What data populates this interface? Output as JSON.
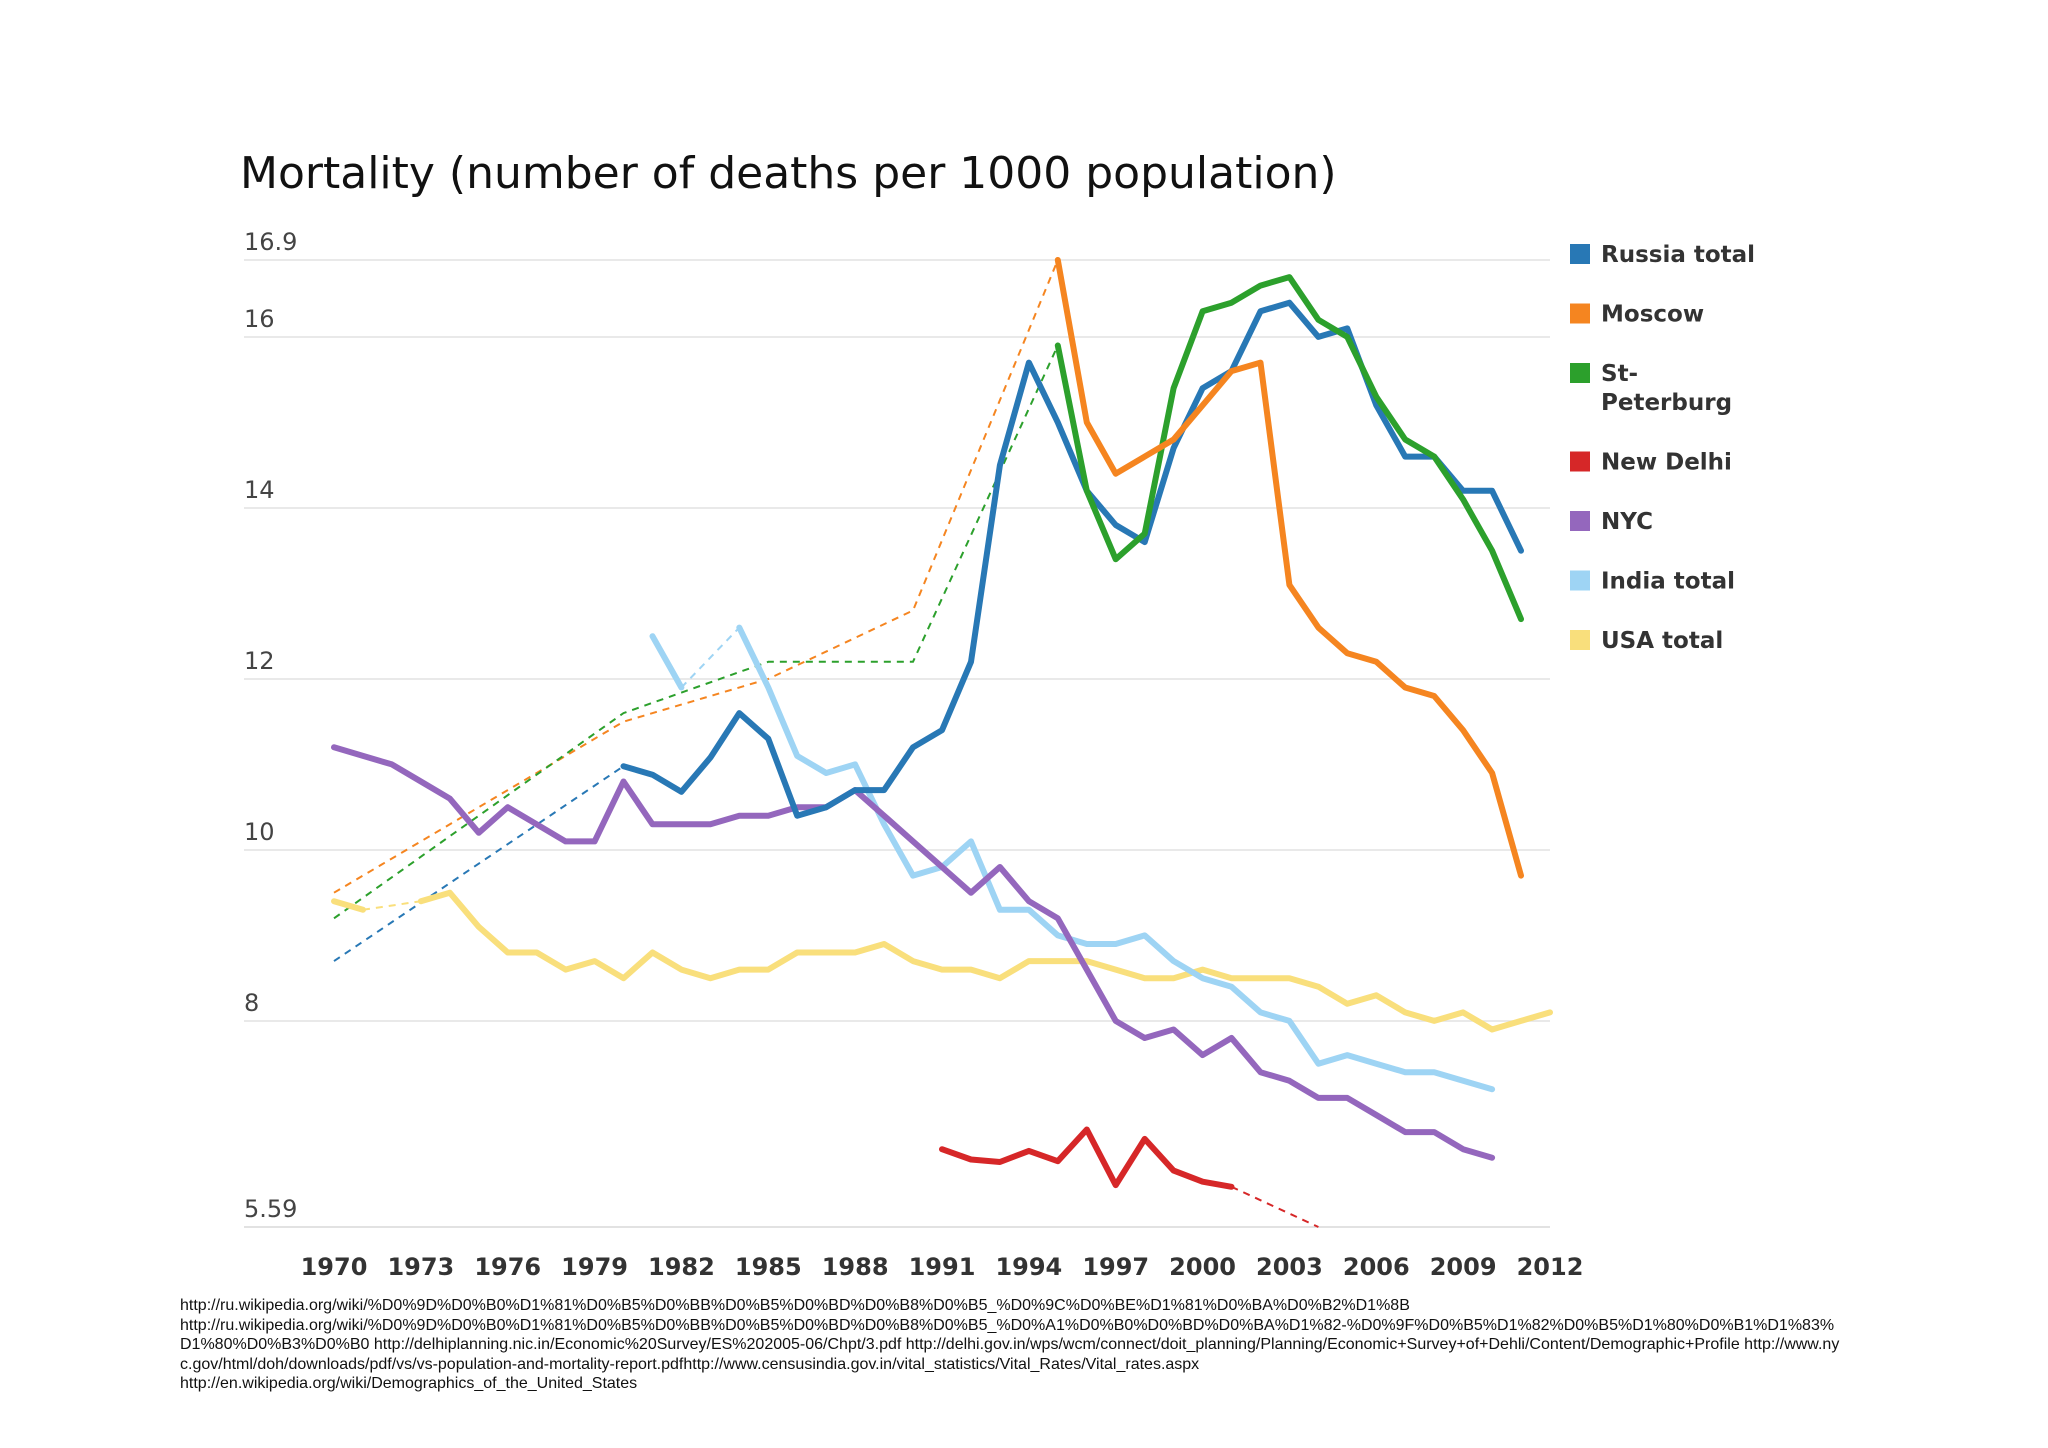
{
  "chart_data": {
    "type": "line",
    "title": "Mortality (number of deaths per 1000 population)",
    "xlabel": "",
    "ylabel": "",
    "xlim": [
      1970,
      2012
    ],
    "ylim": [
      5.59,
      16.9
    ],
    "x_ticks": [
      "1970",
      "1973",
      "1976",
      "1979",
      "1982",
      "1985",
      "1988",
      "1991",
      "1994",
      "1997",
      "2000",
      "2003",
      "2006",
      "2009",
      "2012"
    ],
    "y_ticks": [
      {
        "label": "16.9",
        "value": 16.9
      },
      {
        "label": "16",
        "value": 16
      },
      {
        "label": "14",
        "value": 14
      },
      {
        "label": "12",
        "value": 12
      },
      {
        "label": "10",
        "value": 10
      },
      {
        "label": "8",
        "value": 8
      },
      {
        "label": "5.59",
        "value": 5.59
      }
    ],
    "legend_position": "right",
    "series": [
      {
        "name": "Russia total",
        "color": "#2878b5",
        "solid": [
          [
            1980,
            10.98
          ],
          [
            1981,
            10.88
          ],
          [
            1982,
            10.68
          ],
          [
            1983,
            11.08
          ],
          [
            1984,
            11.6
          ],
          [
            1985,
            11.3
          ],
          [
            1986,
            10.4
          ],
          [
            1987,
            10.5
          ],
          [
            1988,
            10.7
          ],
          [
            1989,
            10.7
          ],
          [
            1990,
            11.2
          ],
          [
            1991,
            11.4
          ],
          [
            1992,
            12.2
          ],
          [
            1993,
            14.5
          ],
          [
            1994,
            15.7
          ],
          [
            1995,
            15.0
          ],
          [
            1996,
            14.2
          ],
          [
            1997,
            13.8
          ],
          [
            1998,
            13.6
          ],
          [
            1999,
            14.7
          ],
          [
            2000,
            15.4
          ],
          [
            2001,
            15.6
          ],
          [
            2002,
            16.3
          ],
          [
            2003,
            16.4
          ],
          [
            2004,
            16.0
          ],
          [
            2005,
            16.1
          ],
          [
            2006,
            15.2
          ],
          [
            2007,
            14.6
          ],
          [
            2008,
            14.6
          ],
          [
            2009,
            14.2
          ],
          [
            2010,
            14.2
          ],
          [
            2011,
            13.5
          ]
        ],
        "dashed": [
          [
            1970,
            8.7
          ],
          [
            1980,
            10.98
          ]
        ]
      },
      {
        "name": "Moscow",
        "color": "#f58520",
        "solid": [
          [
            1995,
            16.9
          ],
          [
            1996,
            15.0
          ],
          [
            1997,
            14.4
          ],
          [
            1998,
            14.6
          ],
          [
            1999,
            14.8
          ],
          [
            2000,
            15.2
          ],
          [
            2001,
            15.6
          ],
          [
            2002,
            15.7
          ],
          [
            2003,
            13.1
          ],
          [
            2004,
            12.6
          ],
          [
            2005,
            12.3
          ],
          [
            2006,
            12.2
          ],
          [
            2007,
            11.9
          ],
          [
            2008,
            11.8
          ],
          [
            2009,
            11.4
          ],
          [
            2010,
            10.9
          ],
          [
            2011,
            9.7
          ]
        ],
        "dashed": [
          [
            1970,
            9.5
          ],
          [
            1980,
            11.5
          ],
          [
            1985,
            12.0
          ],
          [
            1990,
            12.8
          ],
          [
            1995,
            16.9
          ]
        ]
      },
      {
        "name": "St-Peterburg",
        "color": "#2ca02c",
        "solid": [
          [
            1995,
            15.9
          ],
          [
            1996,
            14.2
          ],
          [
            1997,
            13.4
          ],
          [
            1998,
            13.7
          ],
          [
            1999,
            15.4
          ],
          [
            2000,
            16.3
          ],
          [
            2001,
            16.4
          ],
          [
            2002,
            16.6
          ],
          [
            2003,
            16.7
          ],
          [
            2004,
            16.2
          ],
          [
            2005,
            16.0
          ],
          [
            2006,
            15.3
          ],
          [
            2007,
            14.8
          ],
          [
            2008,
            14.6
          ],
          [
            2009,
            14.1
          ],
          [
            2010,
            13.5
          ],
          [
            2011,
            12.7
          ]
        ],
        "dashed": [
          [
            1970,
            9.2
          ],
          [
            1980,
            11.6
          ],
          [
            1985,
            12.2
          ],
          [
            1990,
            12.2
          ],
          [
            1995,
            15.9
          ]
        ]
      },
      {
        "name": "New Delhi",
        "color": "#d62728",
        "solid": [
          [
            1991,
            6.5
          ],
          [
            1992,
            6.38
          ],
          [
            1993,
            6.35
          ],
          [
            1994,
            6.48
          ],
          [
            1995,
            6.36
          ],
          [
            1996,
            6.73
          ],
          [
            1997,
            6.08
          ],
          [
            1998,
            6.62
          ],
          [
            1999,
            6.25
          ],
          [
            2000,
            6.12
          ],
          [
            2001,
            6.06
          ]
        ],
        "dashed": [
          [
            2001,
            6.06
          ],
          [
            2004,
            5.59
          ]
        ]
      },
      {
        "name": "NYC",
        "color": "#9467bd",
        "solid": [
          [
            1970,
            11.2
          ],
          [
            1971,
            11.1
          ],
          [
            1972,
            11.0
          ],
          [
            1973,
            10.8
          ],
          [
            1974,
            10.6
          ],
          [
            1975,
            10.2
          ],
          [
            1976,
            10.5
          ],
          [
            1977,
            10.3
          ],
          [
            1978,
            10.1
          ],
          [
            1979,
            10.1
          ],
          [
            1980,
            10.8
          ],
          [
            1981,
            10.3
          ],
          [
            1982,
            10.3
          ],
          [
            1983,
            10.3
          ],
          [
            1984,
            10.4
          ],
          [
            1985,
            10.4
          ],
          [
            1986,
            10.5
          ],
          [
            1987,
            10.5
          ],
          [
            1988,
            10.7
          ],
          [
            1989,
            10.4
          ],
          [
            1990,
            10.1
          ],
          [
            1991,
            9.8
          ],
          [
            1992,
            9.5
          ],
          [
            1993,
            9.8
          ],
          [
            1994,
            9.4
          ],
          [
            1995,
            9.2
          ],
          [
            1996,
            8.6
          ],
          [
            1997,
            8.0
          ],
          [
            1998,
            7.8
          ],
          [
            1999,
            7.9
          ],
          [
            2000,
            7.6
          ],
          [
            2001,
            7.8
          ],
          [
            2002,
            7.4
          ],
          [
            2003,
            7.3
          ],
          [
            2004,
            7.1
          ],
          [
            2005,
            7.1
          ],
          [
            2006,
            6.9
          ],
          [
            2007,
            6.7
          ],
          [
            2008,
            6.7
          ],
          [
            2009,
            6.5
          ],
          [
            2010,
            6.4
          ]
        ],
        "dashed": []
      },
      {
        "name": "India total",
        "color": "#9ed4f4",
        "solid": [
          [
            1981,
            12.5
          ],
          [
            1982,
            11.9
          ]
        ],
        "solid2": [
          [
            1984,
            12.6
          ],
          [
            1985,
            11.9
          ],
          [
            1986,
            11.1
          ],
          [
            1987,
            10.9
          ],
          [
            1988,
            11.0
          ],
          [
            1989,
            10.3
          ],
          [
            1990,
            9.7
          ],
          [
            1991,
            9.8
          ],
          [
            1992,
            10.1
          ],
          [
            1993,
            9.3
          ],
          [
            1994,
            9.3
          ],
          [
            1995,
            9.0
          ],
          [
            1996,
            8.9
          ],
          [
            1997,
            8.9
          ],
          [
            1998,
            9.0
          ],
          [
            1999,
            8.7
          ],
          [
            2000,
            8.5
          ],
          [
            2001,
            8.4
          ],
          [
            2002,
            8.1
          ],
          [
            2003,
            8.0
          ],
          [
            2004,
            7.5
          ],
          [
            2005,
            7.6
          ],
          [
            2006,
            7.5
          ],
          [
            2007,
            7.4
          ],
          [
            2008,
            7.4
          ],
          [
            2009,
            7.3
          ],
          [
            2010,
            7.2
          ]
        ],
        "dashed": [
          [
            1982,
            11.9
          ],
          [
            1984,
            12.6
          ]
        ]
      },
      {
        "name": "USA total",
        "color": "#f9df7c",
        "solid": [
          [
            1973,
            9.4
          ],
          [
            1974,
            9.5
          ],
          [
            1975,
            9.1
          ],
          [
            1976,
            8.8
          ],
          [
            1977,
            8.8
          ],
          [
            1978,
            8.6
          ],
          [
            1979,
            8.7
          ],
          [
            1980,
            8.5
          ],
          [
            1981,
            8.8
          ],
          [
            1982,
            8.6
          ],
          [
            1983,
            8.5
          ],
          [
            1984,
            8.6
          ],
          [
            1985,
            8.6
          ],
          [
            1986,
            8.8
          ],
          [
            1987,
            8.8
          ],
          [
            1988,
            8.8
          ],
          [
            1989,
            8.9
          ],
          [
            1990,
            8.7
          ],
          [
            1991,
            8.6
          ],
          [
            1992,
            8.6
          ],
          [
            1993,
            8.5
          ],
          [
            1994,
            8.7
          ],
          [
            1995,
            8.7
          ],
          [
            1996,
            8.7
          ],
          [
            1997,
            8.6
          ],
          [
            1998,
            8.5
          ],
          [
            1999,
            8.5
          ],
          [
            2000,
            8.6
          ],
          [
            2001,
            8.5
          ],
          [
            2002,
            8.5
          ],
          [
            2003,
            8.5
          ],
          [
            2004,
            8.4
          ],
          [
            2005,
            8.2
          ],
          [
            2006,
            8.3
          ],
          [
            2007,
            8.1
          ],
          [
            2008,
            8.0
          ],
          [
            2009,
            8.1
          ],
          [
            2010,
            7.9
          ],
          [
            2011,
            8.0
          ],
          [
            2012,
            8.1
          ]
        ],
        "solid_head": [
          [
            1970,
            9.4
          ],
          [
            1971,
            9.3
          ]
        ],
        "dashed": [
          [
            1971,
            9.3
          ],
          [
            1973,
            9.4
          ]
        ]
      }
    ]
  },
  "sources": [
    "http://ru.wikipedia.org/wiki/%D0%9D%D0%B0%D1%81%D0%B5%D0%BB%D0%B5%D0%BD%D0%B8%D0%B5_%D0%9C%D0%BE%D1%81%D0%BA%D0%B2%D1%8B",
    "http://ru.wikipedia.org/wiki/%D0%9D%D0%B0%D1%81%D0%B5%D0%BB%D0%B5%D0%BD%D0%B8%D0%B5_%D0%A1%D0%B0%D0%BD%D0%BA%D1%82-%D0%9F%D0%B5%D1%82%D0%B5%D1%80%D0%B1%D1%83%D1%80%D0%B3%D0%B0          http://delhiplanning.nic.in/Economic%20Survey/ES%202005-06/Chpt/3.pdf http://delhi.gov.in/wps/wcm/connect/doit_planning/Planning/Economic+Survey+of+Dehli/Content/Demographic+Profile http://www.nyc.gov/html/doh/downloads/pdf/vs/vs-population-and-mortality-report.pdfhttp://www.censusindia.gov.in/vital_statistics/Vital_Rates/Vital_rates.aspx",
    "http://en.wikipedia.org/wiki/Demographics_of_the_United_States"
  ]
}
